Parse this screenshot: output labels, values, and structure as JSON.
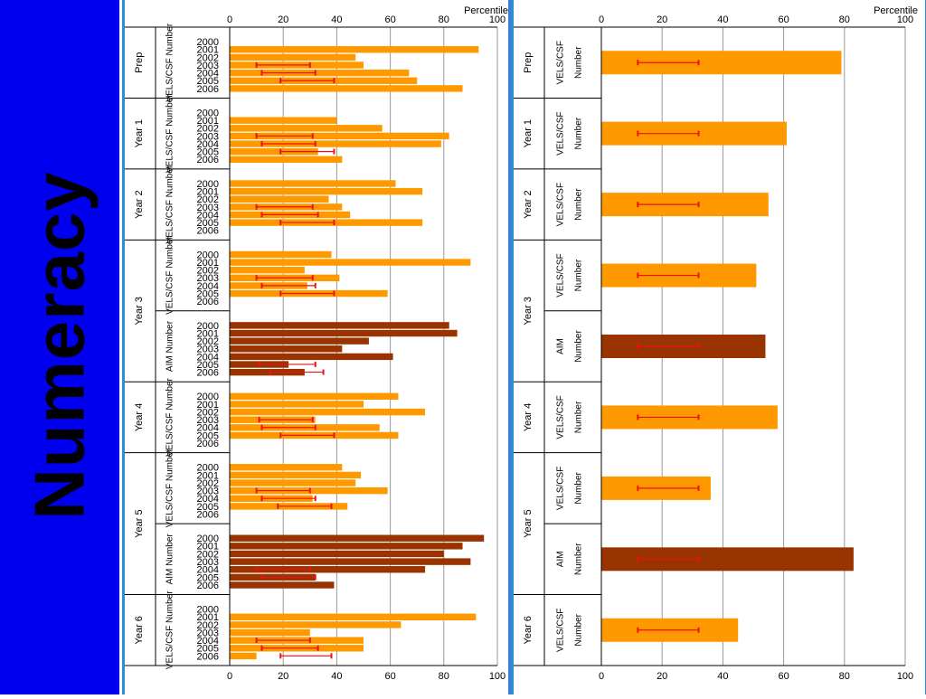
{
  "slide": {
    "title": "Numeracy"
  },
  "colors": {
    "vels": "#ff9900",
    "aim": "#993300",
    "error": "#ee1111",
    "grid": "#999999",
    "sidebar": "#0000ee"
  },
  "chart_data": [
    {
      "type": "bar",
      "orientation": "horizontal",
      "xlabel": "Percentile",
      "xlim": [
        0,
        100
      ],
      "xticks": [
        0,
        20,
        40,
        60,
        80,
        100
      ],
      "grid": true,
      "years": [
        "2000",
        "2001",
        "2002",
        "2003",
        "2004",
        "2005",
        "2006"
      ],
      "groups": [
        {
          "label": "Prep",
          "series": [
            {
              "name": "VELS/CSF Number",
              "kind": "vels",
              "values": [
                null,
                93,
                47,
                50,
                67,
                70,
                87
              ],
              "errors": [
                null,
                null,
                null,
                [
                  10,
                  30
                ],
                [
                  12,
                  32
                ],
                [
                  19,
                  39
                ],
                null
              ]
            }
          ]
        },
        {
          "label": "Year 1",
          "series": [
            {
              "name": "VELS/CSF Number",
              "kind": "vels",
              "values": [
                null,
                40,
                57,
                82,
                79,
                33,
                42
              ],
              "errors": [
                null,
                null,
                null,
                [
                  10,
                  31
                ],
                [
                  12,
                  32
                ],
                [
                  19,
                  39
                ],
                null
              ]
            }
          ]
        },
        {
          "label": "Year 2",
          "series": [
            {
              "name": "VELS/CSF Number",
              "kind": "vels",
              "values": [
                62,
                72,
                37,
                42,
                45,
                72,
                null
              ],
              "errors": [
                null,
                null,
                null,
                [
                  10,
                  31
                ],
                [
                  12,
                  33
                ],
                [
                  19,
                  39
                ],
                null
              ]
            }
          ]
        },
        {
          "label": "Year 3",
          "series": [
            {
              "name": "VELS/CSF Number",
              "kind": "vels",
              "values": [
                38,
                90,
                28,
                41,
                29,
                59,
                null
              ],
              "errors": [
                null,
                null,
                null,
                [
                  10,
                  31
                ],
                [
                  12,
                  32
                ],
                [
                  19,
                  39
                ],
                null
              ]
            },
            {
              "name": "AIM Number",
              "kind": "aim",
              "values": [
                82,
                85,
                52,
                42,
                61,
                22,
                28
              ],
              "errors": [
                null,
                null,
                null,
                null,
                null,
                [
                  11,
                  32
                ],
                [
                  15,
                  35
                ]
              ]
            }
          ]
        },
        {
          "label": "Year 4",
          "series": [
            {
              "name": "VELS/CSF Number",
              "kind": "vels",
              "values": [
                63,
                50,
                73,
                32,
                56,
                63,
                null
              ],
              "errors": [
                null,
                null,
                null,
                [
                  11,
                  31
                ],
                [
                  12,
                  32
                ],
                [
                  19,
                  39
                ],
                null
              ]
            }
          ]
        },
        {
          "label": "Year 5",
          "series": [
            {
              "name": "VELS/CSF Number",
              "kind": "vels",
              "values": [
                42,
                49,
                47,
                59,
                31,
                44,
                null
              ],
              "errors": [
                null,
                null,
                null,
                [
                  10,
                  30
                ],
                [
                  12,
                  32
                ],
                [
                  18,
                  38
                ],
                null
              ]
            },
            {
              "name": "AIM Number",
              "kind": "aim",
              "values": [
                95,
                87,
                80,
                90,
                73,
                32,
                39
              ],
              "errors": [
                null,
                null,
                null,
                null,
                [
                  10,
                  30
                ],
                [
                  12,
                  32
                ],
                null
              ]
            }
          ]
        },
        {
          "label": "Year 6",
          "series": [
            {
              "name": "VELS/CSF Number",
              "kind": "vels",
              "values": [
                null,
                92,
                64,
                30,
                50,
                50,
                10
              ],
              "errors": [
                null,
                null,
                null,
                null,
                [
                  10,
                  30
                ],
                [
                  12,
                  33
                ],
                [
                  19,
                  38
                ]
              ]
            }
          ]
        }
      ]
    },
    {
      "type": "bar",
      "orientation": "horizontal",
      "xlabel": "Percentile",
      "xlim": [
        0,
        100
      ],
      "xticks": [
        0,
        20,
        40,
        60,
        80,
        100
      ],
      "grid": true,
      "groups": [
        {
          "label": "Prep",
          "series": [
            {
              "name": "VELS/CSF Number",
              "kind": "vels",
              "value": 79,
              "error": [
                12,
                32
              ]
            }
          ]
        },
        {
          "label": "Year 1",
          "series": [
            {
              "name": "VELS/CSF Number",
              "kind": "vels",
              "value": 61,
              "error": [
                12,
                32
              ]
            }
          ]
        },
        {
          "label": "Year 2",
          "series": [
            {
              "name": "VELS/CSF Number",
              "kind": "vels",
              "value": 55,
              "error": [
                12,
                32
              ]
            }
          ]
        },
        {
          "label": "Year 3",
          "series": [
            {
              "name": "VELS/CSF Number",
              "kind": "vels",
              "value": 51,
              "error": [
                12,
                32
              ]
            },
            {
              "name": "AIM Number",
              "kind": "aim",
              "value": 54,
              "error": [
                12,
                32
              ]
            }
          ]
        },
        {
          "label": "Year 4",
          "series": [
            {
              "name": "VELS/CSF Number",
              "kind": "vels",
              "value": 58,
              "error": [
                12,
                32
              ]
            }
          ]
        },
        {
          "label": "Year 5",
          "series": [
            {
              "name": "VELS/CSF Number",
              "kind": "vels",
              "value": 36,
              "error": [
                12,
                32
              ]
            },
            {
              "name": "AIM Number",
              "kind": "aim",
              "value": 83,
              "error": [
                12,
                32
              ]
            }
          ]
        },
        {
          "label": "Year 6",
          "series": [
            {
              "name": "VELS/CSF Number",
              "kind": "vels",
              "value": 45,
              "error": [
                12,
                32
              ]
            }
          ]
        }
      ]
    }
  ]
}
